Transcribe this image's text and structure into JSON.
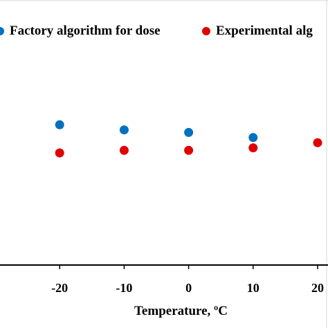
{
  "chart_data": {
    "type": "scatter",
    "title": "",
    "xlabel": "Temperature, ºC",
    "ylabel": "",
    "x_ticks": [
      "0",
      "-20",
      "-10",
      "0",
      "10",
      "20"
    ],
    "legend_position": "top",
    "grid": false,
    "series": [
      {
        "name": "Factory algorithm for dose",
        "color": "#0070C0",
        "x": [
          -20,
          -10,
          0,
          10
        ],
        "y": [
          1.11,
          1.09,
          1.08,
          1.06
        ]
      },
      {
        "name": "Experimental alg",
        "color": "#E00000",
        "x": [
          -20,
          -10,
          0,
          10,
          20
        ],
        "y": [
          1.0,
          1.01,
          1.01,
          1.02,
          1.04
        ]
      }
    ]
  }
}
